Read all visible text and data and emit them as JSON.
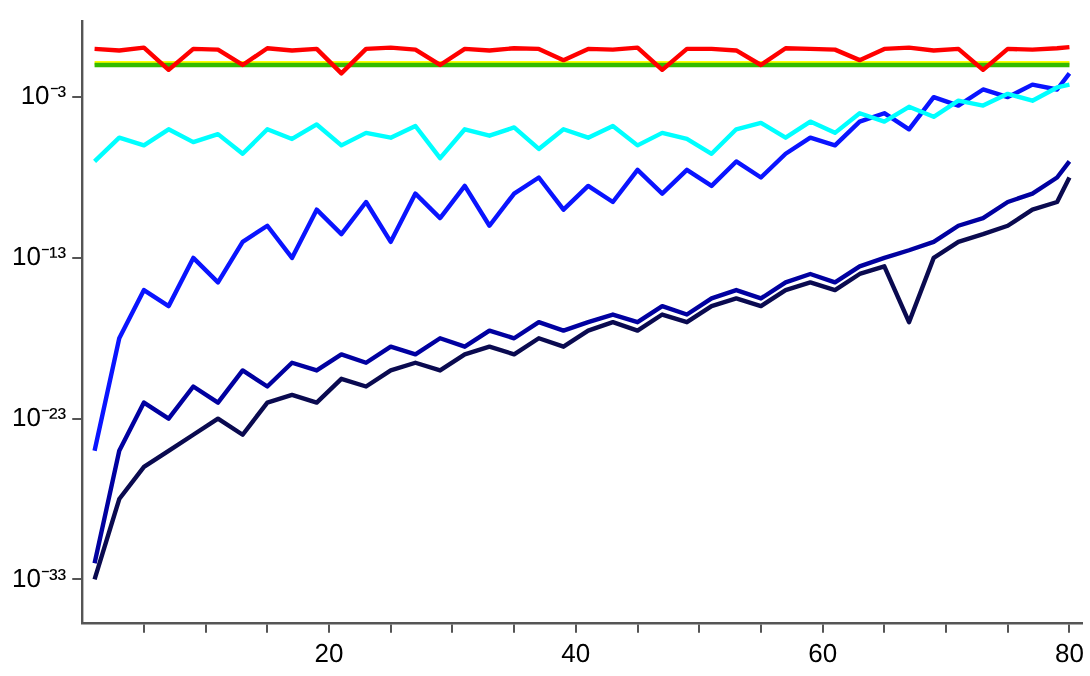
{
  "chart_data": {
    "type": "line",
    "log": "y",
    "grid": false,
    "legend": false,
    "marker": "none",
    "line_style": "solid",
    "x": [
      1,
      3,
      5,
      7,
      9,
      11,
      13,
      15,
      17,
      19,
      21,
      23,
      25,
      27,
      29,
      31,
      33,
      35,
      37,
      39,
      41,
      43,
      45,
      47,
      49,
      51,
      53,
      55,
      57,
      59,
      61,
      63,
      65,
      67,
      69,
      71,
      73,
      75,
      77,
      79,
      80
    ],
    "xlim": [
      0,
      81
    ],
    "ylim": [
      2e-36,
      50
    ],
    "xticks": [
      {
        "value": 5,
        "label": null
      },
      {
        "value": 10,
        "label": null
      },
      {
        "value": 15,
        "label": null
      },
      20,
      {
        "value": 25,
        "label": null
      },
      {
        "value": 30,
        "label": null
      },
      {
        "value": 35,
        "label": null
      },
      40,
      {
        "value": 45,
        "label": null
      },
      {
        "value": 50,
        "label": null
      },
      {
        "value": 55,
        "label": null
      },
      60,
      {
        "value": 65,
        "label": null
      },
      {
        "value": 70,
        "label": null
      },
      {
        "value": 75,
        "label": null
      },
      80
    ],
    "yticks": [
      {
        "value": 1e-33,
        "label": "10⁻³³"
      },
      {
        "value": 1e-23,
        "label": "10⁻²³"
      },
      {
        "value": 1e-13,
        "label": "10⁻¹³"
      },
      {
        "value": 0.001,
        "label": "10⁻³"
      }
    ],
    "series": [
      {
        "color": "#ff0000",
        "values": [
          1,
          0.8,
          1.2,
          0.05,
          1,
          0.9,
          0.1,
          1.1,
          0.8,
          1,
          0.03,
          1,
          1.2,
          0.9,
          0.1,
          1,
          0.8,
          1.1,
          1,
          0.2,
          1,
          0.9,
          1.2,
          0.05,
          1,
          1,
          0.8,
          0.1,
          1.1,
          1,
          0.9,
          0.2,
          1,
          1.2,
          0.8,
          1,
          0.05,
          1,
          0.9,
          1.1,
          1.3
        ]
      },
      {
        "color": "#33bb00",
        "values": [
          0.1,
          0.1,
          0.1,
          0.1,
          0.1,
          0.1,
          0.1,
          0.1,
          0.1,
          0.1,
          0.1,
          0.1,
          0.1,
          0.1,
          0.1,
          0.1,
          0.1,
          0.1,
          0.1,
          0.1,
          0.1,
          0.1,
          0.1,
          0.1,
          0.1,
          0.1,
          0.1,
          0.1,
          0.1,
          0.1,
          0.1,
          0.1,
          0.1,
          0.1,
          0.1,
          0.1,
          0.1,
          0.1,
          0.1,
          0.1,
          0.1
        ]
      },
      {
        "color": "#ffff00",
        "values": [
          0.13,
          0.13,
          0.13,
          0.13,
          0.13,
          0.13,
          0.13,
          0.13,
          0.13,
          0.13,
          0.13,
          0.13,
          0.13,
          0.13,
          0.13,
          0.13,
          0.13,
          0.13,
          0.13,
          0.13,
          0.13,
          0.13,
          0.13,
          0.13,
          0.13,
          0.13,
          0.13,
          0.13,
          0.13,
          0.13,
          0.13,
          0.13,
          0.13,
          0.13,
          0.13,
          0.13,
          0.13,
          0.13,
          0.13,
          0.13,
          0.13
        ]
      },
      {
        "color": "#00ffff",
        "values": [
          1e-07,
          3e-06,
          1e-06,
          1e-05,
          1.6e-06,
          5e-06,
          3e-07,
          1e-05,
          2.5e-06,
          2e-05,
          1e-06,
          6e-06,
          3e-06,
          1.6e-05,
          1.6e-07,
          1e-05,
          4e-06,
          1.3e-05,
          6e-07,
          1e-05,
          3e-06,
          1.6e-05,
          1e-06,
          6e-06,
          2.5e-06,
          3e-07,
          1e-05,
          2.5e-05,
          3e-06,
          3e-05,
          6e-06,
          0.0001,
          3e-05,
          0.00025,
          6e-05,
          0.0006,
          0.0003,
          0.0016,
          0.0006,
          0.004,
          0.006
        ]
      },
      {
        "color": "#0a14ff",
        "values": [
          1e-25,
          1e-18,
          1e-15,
          1e-16,
          1e-13,
          3e-15,
          1e-12,
          1e-11,
          1e-13,
          1e-10,
          3e-12,
          3e-10,
          1e-12,
          1e-09,
          3e-11,
          3e-09,
          1e-11,
          1e-09,
          1e-08,
          1e-10,
          3e-09,
          3e-10,
          3e-08,
          1e-09,
          3e-08,
          3e-09,
          1e-07,
          1e-08,
          3e-07,
          3e-06,
          1e-06,
          3e-05,
          0.0001,
          1e-05,
          0.001,
          0.0003,
          0.003,
          0.001,
          0.006,
          0.003,
          0.03
        ]
      },
      {
        "color": "#0000a0",
        "values": [
          1e-32,
          1e-25,
          1e-22,
          1e-23,
          1e-21,
          1e-22,
          1e-20,
          1e-21,
          3e-20,
          1e-20,
          1e-19,
          3e-20,
          3e-19,
          1e-19,
          1e-18,
          3e-19,
          3e-18,
          1e-18,
          1e-17,
          3e-18,
          1e-17,
          3e-17,
          1e-17,
          1e-16,
          3e-17,
          3e-16,
          1e-15,
          3e-16,
          3e-15,
          1e-14,
          3e-15,
          3e-14,
          1e-13,
          3e-13,
          1e-12,
          1e-11,
          3e-11,
          3e-10,
          1e-09,
          1e-08,
          1e-07
        ]
      },
      {
        "color": "#0a0a50",
        "values": [
          1e-33,
          1e-28,
          1e-26,
          1e-25,
          1e-24,
          1e-23,
          1e-24,
          1e-22,
          3e-22,
          1e-22,
          3e-21,
          1e-21,
          1e-20,
          3e-20,
          1e-20,
          1e-19,
          3e-19,
          1e-19,
          1e-18,
          3e-19,
          3e-18,
          1e-17,
          3e-18,
          3e-17,
          1e-17,
          1e-16,
          3e-16,
          1e-16,
          1e-15,
          3e-15,
          1e-15,
          1e-14,
          3e-14,
          1e-17,
          1e-13,
          1e-12,
          3e-12,
          1e-11,
          1e-10,
          3e-10,
          1e-08
        ]
      }
    ]
  }
}
